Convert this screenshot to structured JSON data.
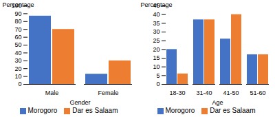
{
  "chart_data": [
    {
      "type": "bar",
      "categories": [
        "Male",
        "Female"
      ],
      "series": [
        {
          "name": "Morogoro",
          "color": "#4472C4",
          "values": [
            87,
            13
          ]
        },
        {
          "name": "Dar es Salaam",
          "color": "#ED7D31",
          "values": [
            70,
            30
          ]
        }
      ],
      "xlabel": "Gender",
      "ylabel": "Percentage",
      "ylim": [
        0,
        100
      ],
      "yticks": [
        0,
        10,
        20,
        30,
        40,
        50,
        60,
        70,
        80,
        90,
        100
      ],
      "grid": false,
      "legend": "bottom"
    },
    {
      "type": "bar",
      "categories": [
        "18-30",
        "31-40",
        "41-50",
        "51-60"
      ],
      "series": [
        {
          "name": "Morogoro",
          "color": "#4472C4",
          "values": [
            20,
            37,
            26,
            17
          ]
        },
        {
          "name": "Dar es Salaam",
          "color": "#ED7D31",
          "values": [
            6,
            37,
            40,
            17
          ]
        }
      ],
      "xlabel": "Age",
      "ylabel": "Percentage",
      "ylim": [
        0,
        45
      ],
      "yticks": [
        0,
        5,
        10,
        15,
        20,
        25,
        30,
        35,
        40,
        45
      ],
      "grid": false,
      "legend": "bottom"
    }
  ]
}
